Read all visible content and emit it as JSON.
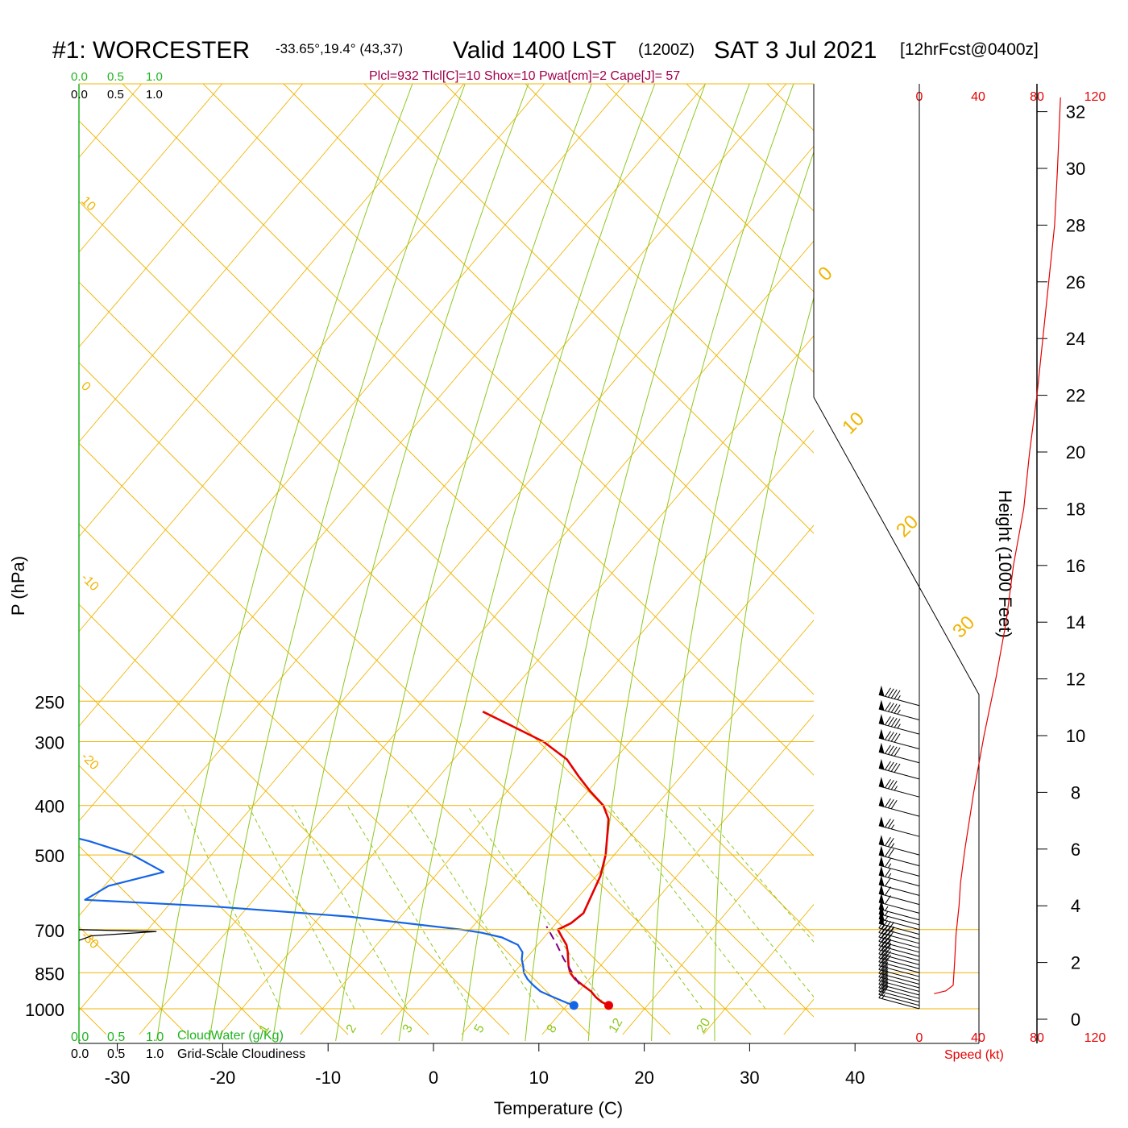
{
  "header": {
    "station": "#1: WORCESTER",
    "coords": "-33.65°,19.4° (43,37)",
    "valid": "Valid 1400 LST",
    "utc": "(1200Z)",
    "date": "SAT 3 Jul 2021",
    "forecast": "[12hrFcst@0400z]",
    "indices": "Plcl=932 Tlcl[C]=10 Shox=10 Pwat[cm]=2 Cape[J]= 57"
  },
  "colors": {
    "isobar": "#f0b400",
    "dry_adiabat": "#f0b400",
    "moist_adiabat": "#8cc81e",
    "mixing_ratio": "#8cc81e",
    "temperature": "#e60000",
    "dewpoint": "#1464e6",
    "parcel": "#800080",
    "speed": "#e60000",
    "cloud_water": "#1eb41e",
    "indices": "#a0004c"
  },
  "chart_data": {
    "type": "line",
    "xlabel": "Temperature (C)",
    "ylabel": "P (hPa)",
    "y2label": "Height (1000 Feet)",
    "x_ticks": [
      -30,
      -20,
      -10,
      0,
      10,
      20,
      30,
      40
    ],
    "p_ticks": [
      250,
      300,
      400,
      500,
      700,
      850,
      1000
    ],
    "height_ticks": [
      0,
      2,
      4,
      6,
      8,
      10,
      12,
      14,
      16,
      18,
      20,
      22,
      24,
      26,
      28,
      30,
      32
    ],
    "dry_adiabat_labels": [
      "10",
      "0",
      "-10",
      "-20",
      "-30"
    ],
    "dry_adiabat_labels_right": [
      "0",
      "10",
      "20",
      "30"
    ],
    "mixing_ratio_labels": [
      "1",
      "2",
      "3",
      "5",
      "8",
      "12",
      "20"
    ],
    "cloud_scale_top_green": [
      "0.0",
      "0.5",
      "1.0"
    ],
    "cloud_scale_top_black": [
      "0.0",
      "0.5",
      "1.0"
    ],
    "cloud_scale_bottom_green": [
      "0.0",
      "0.5",
      "1.0"
    ],
    "cloud_scale_bottom_black": [
      "0.0",
      "0.5",
      "1.0"
    ],
    "cloud_water_label": "CloudWater (g/Kg)",
    "cloudiness_label": "Grid-Scale Cloudiness",
    "speed_ticks": [
      "0",
      "40",
      "80",
      "120"
    ],
    "speed_label": "Speed (kt)",
    "cloudiness_profile": [
      {
        "p": 700,
        "v": 0
      },
      {
        "p": 706,
        "v": 0.74
      },
      {
        "p": 720,
        "v": 0.12
      },
      {
        "p": 735,
        "v": 0
      }
    ],
    "series": [
      {
        "key": "temperature",
        "values": [
          {
            "p": 985,
            "t": 16.5
          },
          {
            "p": 970,
            "t": 15.7
          },
          {
            "p": 950,
            "t": 15.0
          },
          {
            "p": 925,
            "t": 14.3
          },
          {
            "p": 900,
            "t": 13.3
          },
          {
            "p": 875,
            "t": 12.3
          },
          {
            "p": 850,
            "t": 11.6
          },
          {
            "p": 825,
            "t": 11.2
          },
          {
            "p": 800,
            "t": 10.9
          },
          {
            "p": 775,
            "t": 10.6
          },
          {
            "p": 750,
            "t": 10.2
          },
          {
            "p": 725,
            "t": 9.5
          },
          {
            "p": 700,
            "t": 8.8
          },
          {
            "p": 680,
            "t": 9.8
          },
          {
            "p": 650,
            "t": 10.6
          },
          {
            "p": 600,
            "t": 10.7
          },
          {
            "p": 550,
            "t": 10.8
          },
          {
            "p": 500,
            "t": 10.5
          },
          {
            "p": 450,
            "t": 9.8
          },
          {
            "p": 425,
            "t": 9.4
          },
          {
            "p": 400,
            "t": 8.4
          },
          {
            "p": 375,
            "t": 6.6
          },
          {
            "p": 350,
            "t": 4.9
          },
          {
            "p": 325,
            "t": 3.2
          },
          {
            "p": 300,
            "t": 0.3
          },
          {
            "p": 280,
            "t": -3.2
          },
          {
            "p": 262,
            "t": -6.6
          }
        ]
      },
      {
        "key": "dewpoint",
        "values": [
          {
            "p": 985,
            "t": 13.2
          },
          {
            "p": 975,
            "t": 12.5
          },
          {
            "p": 950,
            "t": 11.0
          },
          {
            "p": 925,
            "t": 9.5
          },
          {
            "p": 900,
            "t": 8.6
          },
          {
            "p": 875,
            "t": 7.8
          },
          {
            "p": 850,
            "t": 7.2
          },
          {
            "p": 825,
            "t": 6.9
          },
          {
            "p": 800,
            "t": 6.5
          },
          {
            "p": 775,
            "t": 6.3
          },
          {
            "p": 750,
            "t": 5.6
          },
          {
            "p": 725,
            "t": 3.8
          },
          {
            "p": 710,
            "t": 1.7
          },
          {
            "p": 700,
            "t": -0.3
          },
          {
            "p": 660,
            "t": -11.5
          },
          {
            "p": 630,
            "t": -25.0
          },
          {
            "p": 612,
            "t": -37.2
          },
          {
            "p": 575,
            "t": -35.5
          },
          {
            "p": 540,
            "t": -30.8
          },
          {
            "p": 500,
            "t": -34.4
          },
          {
            "p": 470,
            "t": -39.0
          },
          {
            "p": 400,
            "t": -54.0
          },
          {
            "p": 375,
            "t": -57.0
          },
          {
            "p": 325,
            "t": -57.9
          },
          {
            "p": 300,
            "t": -55.7
          },
          {
            "p": 283,
            "t": -56.9
          },
          {
            "p": 262,
            "t": -63.5
          }
        ]
      },
      {
        "key": "parcel",
        "values": [
          {
            "p": 895,
            "t": 12.9
          },
          {
            "p": 850,
            "t": 11.8
          },
          {
            "p": 800,
            "t": 10.5
          },
          {
            "p": 750,
            "t": 9.3
          },
          {
            "p": 700,
            "t": 7.9
          },
          {
            "p": 690,
            "t": 7.6
          }
        ]
      }
    ],
    "surface_temperature": {
      "p": 985,
      "t": 16.5
    },
    "surface_dewpoint": {
      "p": 985,
      "t": 13.2
    },
    "wind_speed_profile": [
      {
        "h": 0.9,
        "s": 10
      },
      {
        "h": 1.0,
        "s": 18
      },
      {
        "h": 1.2,
        "s": 23
      },
      {
        "h": 2,
        "s": 24
      },
      {
        "h": 3,
        "s": 25
      },
      {
        "h": 4,
        "s": 27
      },
      {
        "h": 4.8,
        "s": 28
      },
      {
        "h": 6,
        "s": 31
      },
      {
        "h": 8,
        "s": 37
      },
      {
        "h": 10,
        "s": 44
      },
      {
        "h": 12,
        "s": 52
      },
      {
        "h": 14,
        "s": 59
      },
      {
        "h": 16,
        "s": 64
      },
      {
        "h": 18,
        "s": 71
      },
      {
        "h": 20,
        "s": 75
      },
      {
        "h": 22,
        "s": 80
      },
      {
        "h": 24,
        "s": 84
      },
      {
        "h": 26,
        "s": 88
      },
      {
        "h": 28,
        "s": 92
      },
      {
        "h": 30,
        "s": 94
      },
      {
        "h": 32.5,
        "s": 96
      }
    ],
    "wind_barbs": [
      {
        "p": 1000,
        "dir": 290,
        "spd": 15
      },
      {
        "p": 985,
        "dir": 295,
        "spd": 20
      },
      {
        "p": 970,
        "dir": 295,
        "spd": 22
      },
      {
        "p": 955,
        "dir": 295,
        "spd": 23
      },
      {
        "p": 940,
        "dir": 295,
        "spd": 24
      },
      {
        "p": 925,
        "dir": 295,
        "spd": 25
      },
      {
        "p": 910,
        "dir": 295,
        "spd": 25
      },
      {
        "p": 895,
        "dir": 295,
        "spd": 26
      },
      {
        "p": 880,
        "dir": 295,
        "spd": 27
      },
      {
        "p": 865,
        "dir": 295,
        "spd": 27
      },
      {
        "p": 850,
        "dir": 295,
        "spd": 28
      },
      {
        "p": 835,
        "dir": 295,
        "spd": 29
      },
      {
        "p": 820,
        "dir": 295,
        "spd": 30
      },
      {
        "p": 805,
        "dir": 295,
        "spd": 32
      },
      {
        "p": 790,
        "dir": 295,
        "spd": 34
      },
      {
        "p": 775,
        "dir": 295,
        "spd": 36
      },
      {
        "p": 760,
        "dir": 295,
        "spd": 38
      },
      {
        "p": 745,
        "dir": 295,
        "spd": 42
      },
      {
        "p": 730,
        "dir": 295,
        "spd": 46
      },
      {
        "p": 715,
        "dir": 295,
        "spd": 50
      },
      {
        "p": 700,
        "dir": 295,
        "spd": 53
      },
      {
        "p": 685,
        "dir": 295,
        "spd": 55
      },
      {
        "p": 670,
        "dir": 295,
        "spd": 57
      },
      {
        "p": 650,
        "dir": 295,
        "spd": 58
      },
      {
        "p": 625,
        "dir": 295,
        "spd": 60
      },
      {
        "p": 600,
        "dir": 295,
        "spd": 62
      },
      {
        "p": 575,
        "dir": 295,
        "spd": 63
      },
      {
        "p": 550,
        "dir": 295,
        "spd": 65
      },
      {
        "p": 525,
        "dir": 295,
        "spd": 68
      },
      {
        "p": 500,
        "dir": 295,
        "spd": 73
      },
      {
        "p": 460,
        "dir": 295,
        "spd": 76
      },
      {
        "p": 420,
        "dir": 295,
        "spd": 80
      },
      {
        "p": 385,
        "dir": 295,
        "spd": 85
      },
      {
        "p": 355,
        "dir": 295,
        "spd": 88
      },
      {
        "p": 330,
        "dir": 295,
        "spd": 90
      },
      {
        "p": 310,
        "dir": 295,
        "spd": 92
      },
      {
        "p": 290,
        "dir": 295,
        "spd": 93
      },
      {
        "p": 272,
        "dir": 295,
        "spd": 95
      },
      {
        "p": 255,
        "dir": 295,
        "spd": 96
      }
    ]
  }
}
